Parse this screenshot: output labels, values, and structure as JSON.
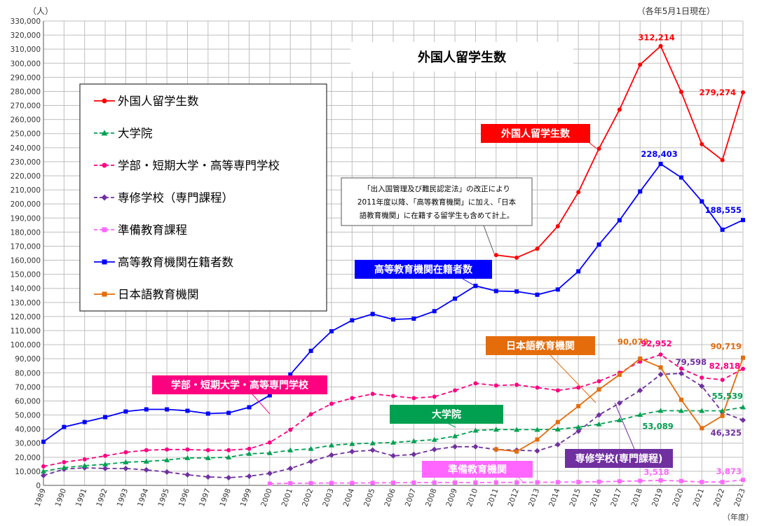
{
  "chart_data": {
    "type": "line",
    "title": "外国人留学生数",
    "unit_label": "（人）",
    "date_note": "（各年5月1日現在）",
    "xlabel": "（年度）",
    "ylim": [
      0,
      330000
    ],
    "y_tick_step": 10000,
    "grid": true,
    "legend_position": "top-left",
    "x": [
      1989,
      1990,
      1991,
      1992,
      1993,
      1994,
      1995,
      1996,
      1997,
      1998,
      1999,
      2000,
      2001,
      2002,
      2003,
      2004,
      2005,
      2006,
      2007,
      2008,
      2009,
      2010,
      2011,
      2012,
      2013,
      2014,
      2015,
      2016,
      2017,
      2018,
      2019,
      2020,
      2021,
      2022,
      2023
    ],
    "series": [
      {
        "name": "外国人留学生数",
        "color": "#ff0000",
        "marker": "circle",
        "values": [
          null,
          null,
          null,
          null,
          null,
          null,
          null,
          null,
          null,
          null,
          null,
          null,
          null,
          null,
          null,
          null,
          null,
          null,
          null,
          null,
          null,
          null,
          163697,
          161848,
          168145,
          184155,
          208379,
          239287,
          267042,
          298980,
          312214,
          279597,
          242444,
          231146,
          279274
        ]
      },
      {
        "name": "大学院",
        "color": "#00a050",
        "marker": "triangle",
        "values": [
          10000,
          12600,
          14000,
          15000,
          16500,
          17000,
          18000,
          19500,
          19500,
          20000,
          22500,
          23000,
          25000,
          26000,
          28500,
          29500,
          30000,
          30500,
          31500,
          32500,
          35000,
          39000,
          39700,
          39600,
          39600,
          39800,
          41400,
          43500,
          46400,
          50200,
          53089,
          53000,
          53000,
          53000,
          55539
        ]
      },
      {
        "name": "学部・短期大学・高等専門学校",
        "color": "#ff0080",
        "marker": "circle",
        "values": [
          13500,
          16500,
          18500,
          21000,
          23500,
          25000,
          25500,
          25500,
          25000,
          25000,
          26000,
          30500,
          39500,
          50500,
          58000,
          62000,
          65000,
          63500,
          62000,
          63000,
          67500,
          72500,
          71000,
          71500,
          69500,
          67500,
          69500,
          74000,
          80000,
          88000,
          92952,
          83000,
          76500,
          75000,
          82818
        ]
      },
      {
        "name": "専修学校（専門課程）",
        "color": "#7030a0",
        "marker": "diamond",
        "values": [
          7000,
          11500,
          12500,
          12000,
          12000,
          11000,
          9500,
          7500,
          6000,
          5500,
          6500,
          8500,
          12000,
          17000,
          21500,
          24000,
          25000,
          21000,
          22000,
          25500,
          27500,
          27500,
          25500,
          25000,
          24500,
          29000,
          38500,
          50000,
          58500,
          67500,
          78844,
          79598,
          70500,
          52000,
          46325
        ]
      },
      {
        "name": "準備教育課程",
        "color": "#ff66ff",
        "marker": "square",
        "values": [
          null,
          null,
          null,
          null,
          null,
          null,
          null,
          null,
          null,
          null,
          null,
          1200,
          1500,
          1600,
          1700,
          1700,
          1800,
          1900,
          2000,
          2000,
          2000,
          2000,
          2100,
          2100,
          2200,
          2300,
          2400,
          2600,
          2900,
          3200,
          3518,
          3100,
          2400,
          2400,
          3873
        ]
      },
      {
        "name": "高等教育機関在籍者数",
        "color": "#0000ff",
        "marker": "square",
        "values": [
          31000,
          41500,
          45000,
          48500,
          52500,
          54000,
          54000,
          53000,
          51000,
          51500,
          55500,
          64000,
          78800,
          95600,
          109500,
          117300,
          121800,
          117900,
          118500,
          123800,
          132700,
          141800,
          138100,
          137800,
          135500,
          139200,
          152100,
          171100,
          188400,
          208900,
          228403,
          218800,
          201800,
          181700,
          188555
        ]
      },
      {
        "name": "日本語教育機関",
        "color": "#e46c0a",
        "marker": "square",
        "values": [
          null,
          null,
          null,
          null,
          null,
          null,
          null,
          null,
          null,
          null,
          null,
          null,
          null,
          null,
          null,
          null,
          null,
          null,
          null,
          null,
          null,
          null,
          25600,
          24100,
          32600,
          44970,
          56317,
          68165,
          78658,
          90079,
          83811,
          60804,
          40638,
          49405,
          90719
        ]
      }
    ],
    "value_labels": [
      {
        "series": "外国人留学生数",
        "year": 2019,
        "text": "312,214"
      },
      {
        "series": "外国人留学生数",
        "year": 2023,
        "text": "279,274"
      },
      {
        "series": "高等教育機関在籍者数",
        "year": 2019,
        "text": "228,403"
      },
      {
        "series": "高等教育機関在籍者数",
        "year": 2023,
        "text": "188,555"
      },
      {
        "series": "日本語教育機関",
        "year": 2018,
        "text": "90,079"
      },
      {
        "series": "日本語教育機関",
        "year": 2023,
        "text": "90,719"
      },
      {
        "series": "学部・短期大学・高等専門学校",
        "year": 2019,
        "text": "92,952"
      },
      {
        "series": "学部・短期大学・高等専門学校",
        "year": 2023,
        "text": "82,818"
      },
      {
        "series": "専修学校（専門課程）",
        "year": 2020,
        "text": "79,598"
      },
      {
        "series": "専修学校（専門課程）",
        "year": 2023,
        "text": "46,325"
      },
      {
        "series": "大学院",
        "year": 2019,
        "text": "53,089"
      },
      {
        "series": "大学院",
        "year": 2023,
        "text": "55,539"
      },
      {
        "series": "準備教育課程",
        "year": 2019,
        "text": "3,518"
      },
      {
        "series": "準備教育課程",
        "year": 2023,
        "text": "3,873"
      }
    ],
    "annotation": {
      "lines": [
        "「出入国管理及び難民認定法」の改正により",
        "2011年度以降、「高等教育機関」に加え、「日本",
        "語教育機関」に在籍する留学生も含めて計上。"
      ]
    },
    "callouts": [
      {
        "text": "外国人留学生数",
        "color": "#ff0000"
      },
      {
        "text": "高等教育機関在籍者数",
        "color": "#0000ff"
      },
      {
        "text": "日本語教育機関",
        "color": "#e46c0a"
      },
      {
        "text": "学部・短期大学・高等専門学校",
        "color": "#ff0080"
      },
      {
        "text": "大学院",
        "color": "#00a050"
      },
      {
        "text": "専修学校(専門課程)",
        "color": "#7030a0"
      },
      {
        "text": "準備教育機関",
        "color": "#ff66ff"
      }
    ]
  }
}
